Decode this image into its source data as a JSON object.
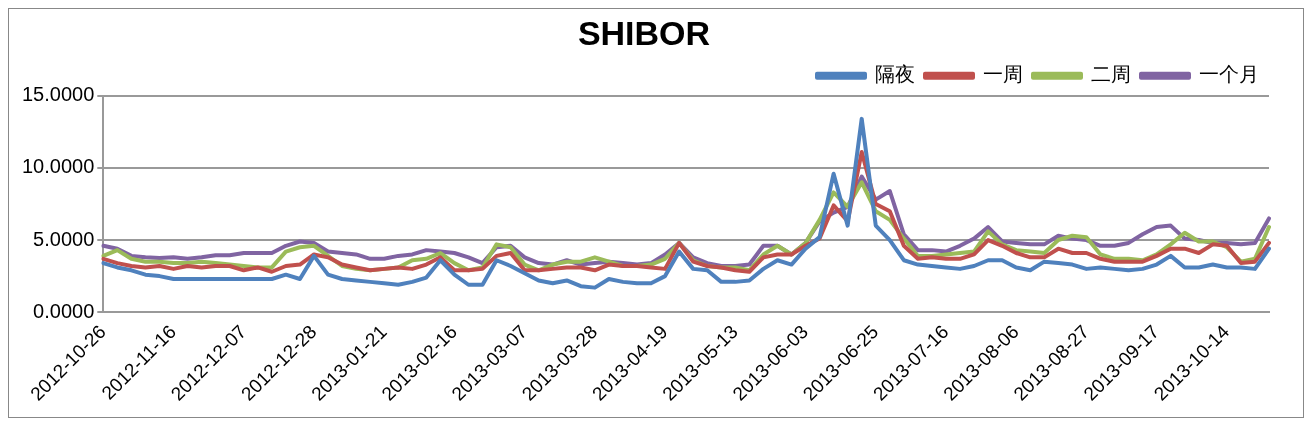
{
  "chart_data": {
    "type": "line",
    "title": "SHIBOR",
    "categories": [
      "2012-10-26",
      null,
      null,
      null,
      null,
      "2012-11-16",
      null,
      null,
      null,
      null,
      "2012-12-07",
      null,
      null,
      null,
      null,
      "2012-12-28",
      null,
      null,
      null,
      null,
      "2013-01-21",
      null,
      null,
      null,
      null,
      "2013-02-16",
      null,
      null,
      null,
      null,
      "2013-03-07",
      null,
      null,
      null,
      null,
      "2013-03-28",
      null,
      null,
      null,
      null,
      "2013-04-19",
      null,
      null,
      null,
      null,
      "2013-05-13",
      null,
      null,
      null,
      null,
      "2013-06-03",
      null,
      null,
      null,
      null,
      "2013-06-25",
      null,
      null,
      null,
      null,
      "2013-07-16",
      null,
      null,
      null,
      null,
      "2013-08-06",
      null,
      null,
      null,
      null,
      "2013-08-27",
      null,
      null,
      null,
      null,
      "2013-09-17",
      null,
      null,
      null,
      null,
      "2013-10-14",
      null,
      null,
      null
    ],
    "series": [
      {
        "name": "隔夜",
        "color": "#4f81bd",
        "values": [
          3.4,
          3.1,
          2.9,
          2.6,
          2.5,
          2.3,
          2.3,
          2.3,
          2.3,
          2.3,
          2.3,
          2.3,
          2.3,
          2.6,
          2.3,
          3.9,
          2.6,
          2.3,
          2.2,
          2.1,
          2.0,
          1.9,
          2.1,
          2.4,
          3.6,
          2.6,
          1.9,
          1.9,
          3.6,
          3.2,
          2.7,
          2.2,
          2.0,
          2.2,
          1.8,
          1.7,
          2.3,
          2.1,
          2.0,
          2.0,
          2.5,
          4.2,
          3.0,
          2.9,
          2.1,
          2.1,
          2.2,
          3.0,
          3.6,
          3.3,
          4.4,
          5.2,
          9.6,
          6.0,
          13.4,
          6.0,
          5.0,
          3.6,
          3.3,
          3.2,
          3.1,
          3.0,
          3.2,
          3.6,
          3.6,
          3.1,
          2.9,
          3.5,
          3.4,
          3.3,
          3.0,
          3.1,
          3.0,
          2.9,
          3.0,
          3.3,
          3.9,
          3.1,
          3.1,
          3.3,
          3.1,
          3.1,
          3.0,
          4.4
        ]
      },
      {
        "name": "一周",
        "color": "#c0504d",
        "values": [
          3.7,
          3.4,
          3.2,
          3.1,
          3.2,
          3.0,
          3.2,
          3.1,
          3.2,
          3.2,
          2.9,
          3.1,
          2.8,
          3.2,
          3.3,
          4.0,
          3.8,
          3.3,
          3.1,
          2.9,
          3.0,
          3.1,
          3.0,
          3.3,
          3.8,
          2.9,
          2.9,
          3.0,
          3.9,
          4.1,
          2.9,
          2.9,
          3.0,
          3.1,
          3.1,
          2.9,
          3.3,
          3.2,
          3.2,
          3.1,
          3.0,
          4.8,
          3.5,
          3.2,
          3.1,
          2.9,
          2.8,
          3.8,
          4.0,
          4.0,
          4.6,
          5.1,
          7.4,
          6.3,
          11.1,
          7.5,
          7.0,
          4.6,
          3.7,
          3.8,
          3.7,
          3.7,
          4.0,
          5.0,
          4.6,
          4.1,
          3.8,
          3.8,
          4.4,
          4.1,
          4.1,
          3.7,
          3.5,
          3.5,
          3.5,
          3.9,
          4.4,
          4.4,
          4.1,
          4.7,
          4.6,
          3.4,
          3.5,
          4.8
        ]
      },
      {
        "name": "二周",
        "color": "#9bbb59",
        "values": [
          3.9,
          4.3,
          3.7,
          3.5,
          3.5,
          3.4,
          3.4,
          3.5,
          3.4,
          3.3,
          3.2,
          3.1,
          3.1,
          4.2,
          4.5,
          4.6,
          3.9,
          3.2,
          3.0,
          2.9,
          3.0,
          3.1,
          3.6,
          3.7,
          4.1,
          3.4,
          2.9,
          3.1,
          4.7,
          4.5,
          3.3,
          2.9,
          3.3,
          3.5,
          3.5,
          3.8,
          3.5,
          3.2,
          3.2,
          3.3,
          3.7,
          4.8,
          3.6,
          3.2,
          3.1,
          3.1,
          2.9,
          4.0,
          4.6,
          4.0,
          4.8,
          6.4,
          8.3,
          7.3,
          9.0,
          7.0,
          6.4,
          5.1,
          3.9,
          3.9,
          4.0,
          4.1,
          4.2,
          5.6,
          4.7,
          4.3,
          4.2,
          4.1,
          5.0,
          5.3,
          5.2,
          4.0,
          3.7,
          3.7,
          3.6,
          4.0,
          4.7,
          5.5,
          4.9,
          4.9,
          4.5,
          3.5,
          3.7,
          5.9
        ]
      },
      {
        "name": "一个月",
        "color": "#8064a2",
        "values": [
          4.6,
          4.4,
          3.9,
          3.8,
          3.75,
          3.8,
          3.7,
          3.8,
          3.95,
          3.95,
          4.1,
          4.1,
          4.1,
          4.6,
          4.9,
          4.8,
          4.2,
          4.1,
          4.0,
          3.7,
          3.7,
          3.9,
          4.0,
          4.3,
          4.2,
          4.1,
          3.8,
          3.4,
          4.5,
          4.6,
          3.8,
          3.4,
          3.3,
          3.6,
          3.3,
          3.4,
          3.5,
          3.4,
          3.3,
          3.4,
          4.0,
          4.8,
          3.8,
          3.4,
          3.2,
          3.2,
          3.3,
          4.6,
          4.6,
          4.0,
          4.8,
          6.3,
          6.9,
          7.3,
          9.4,
          7.8,
          8.4,
          5.4,
          4.3,
          4.3,
          4.2,
          4.6,
          5.1,
          5.9,
          4.9,
          4.8,
          4.7,
          4.7,
          5.3,
          5.1,
          5.0,
          4.6,
          4.6,
          4.8,
          5.4,
          5.9,
          6.0,
          5.1,
          5.0,
          4.8,
          4.8,
          4.7,
          4.8,
          6.5
        ]
      }
    ],
    "ylim": [
      0,
      15
    ],
    "yticks": [
      {
        "value": 0,
        "label": "0.0000"
      },
      {
        "value": 5,
        "label": "5.0000"
      },
      {
        "value": 10,
        "label": "10.0000"
      },
      {
        "value": 15,
        "label": "15.0000"
      }
    ],
    "grid": "y",
    "legend": "top right",
    "marker": "none",
    "line_style": "solid"
  }
}
